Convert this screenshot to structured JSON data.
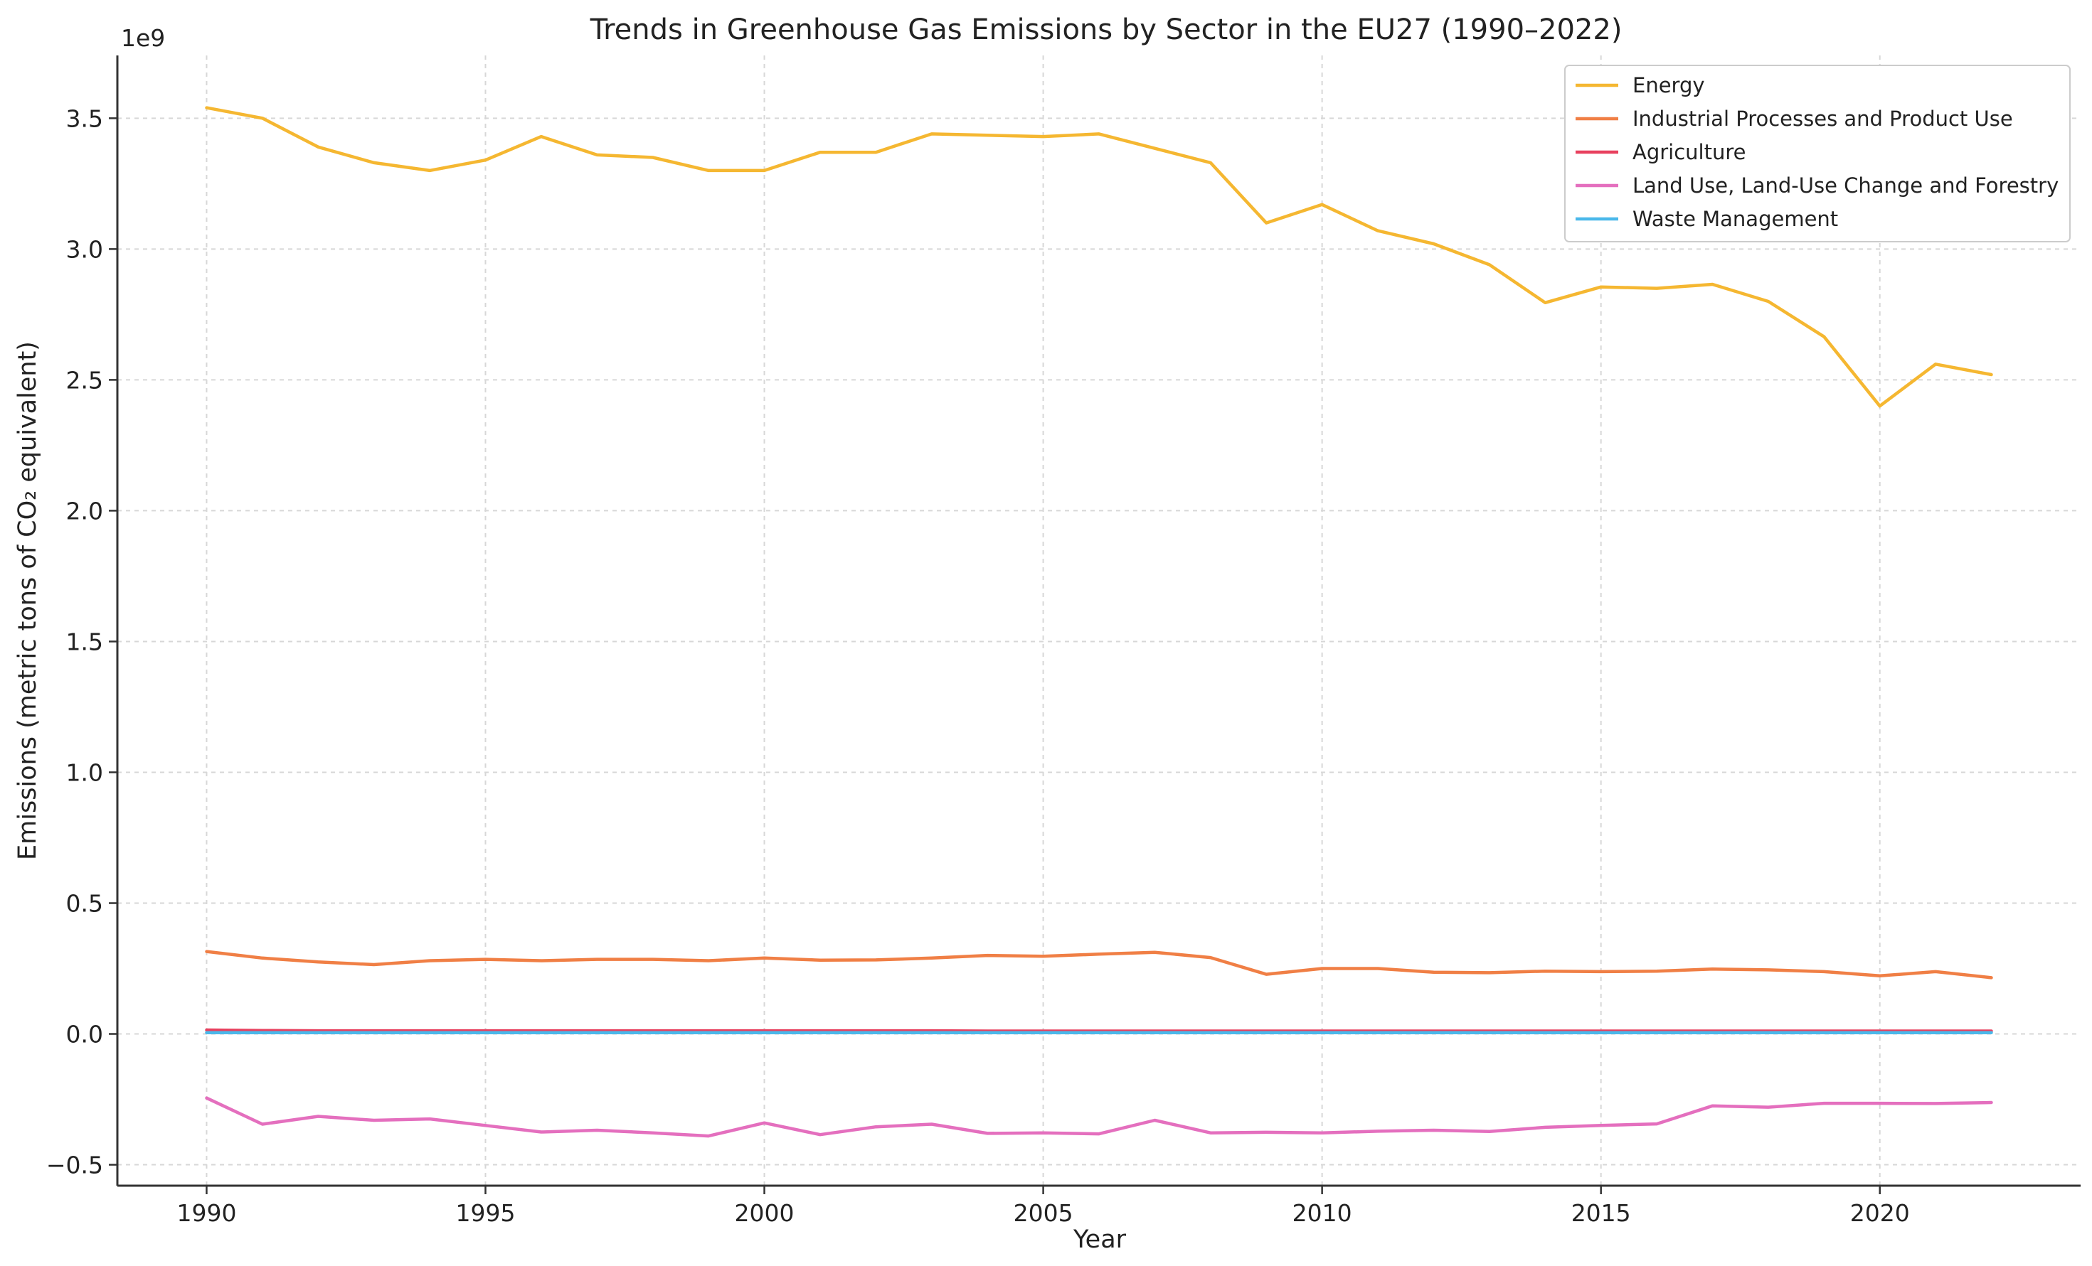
{
  "chart_data": {
    "type": "line",
    "title": "Trends in Greenhouse Gas Emissions by Sector in the EU27 (1990–2022)",
    "xlabel": "Year",
    "ylabel": "Emissions (metric tons of CO₂ equivalent)",
    "y_offset_label": "1e9",
    "xlim": [
      1988.4,
      2023.6
    ],
    "ylim": [
      -0.58,
      3.74
    ],
    "grid": true,
    "legend_position": "top-right",
    "x_ticks": [
      1990,
      1995,
      2000,
      2005,
      2010,
      2015,
      2020
    ],
    "x_tick_labels": [
      "1990",
      "1995",
      "2000",
      "2005",
      "2010",
      "2015",
      "2020"
    ],
    "y_ticks": [
      -0.5,
      0.0,
      0.5,
      1.0,
      1.5,
      2.0,
      2.5,
      3.0,
      3.5
    ],
    "y_tick_labels": [
      "−0.5",
      "0.0",
      "0.5",
      "1.0",
      "1.5",
      "2.0",
      "2.5",
      "3.0",
      "3.5"
    ],
    "x": [
      1990,
      1991,
      1992,
      1993,
      1994,
      1995,
      1996,
      1997,
      1998,
      1999,
      2000,
      2001,
      2002,
      2003,
      2004,
      2005,
      2006,
      2007,
      2008,
      2009,
      2010,
      2011,
      2012,
      2013,
      2014,
      2015,
      2016,
      2017,
      2018,
      2019,
      2020,
      2021,
      2022
    ],
    "series": [
      {
        "name": "Energy",
        "color": "#f5b731",
        "values": [
          3.54,
          3.5,
          3.39,
          3.33,
          3.3,
          3.34,
          3.43,
          3.36,
          3.35,
          3.3,
          3.3,
          3.37,
          3.37,
          3.44,
          3.435,
          3.43,
          3.44,
          3.385,
          3.33,
          3.1,
          3.17,
          3.07,
          3.02,
          2.94,
          2.795,
          2.855,
          2.85,
          2.865,
          2.8,
          2.665,
          2.4,
          2.56,
          2.52
        ]
      },
      {
        "name": "Industrial Processes and Product Use",
        "color": "#f07f45",
        "values": [
          0.315,
          0.29,
          0.275,
          0.265,
          0.28,
          0.285,
          0.28,
          0.285,
          0.285,
          0.28,
          0.29,
          0.282,
          0.283,
          0.29,
          0.3,
          0.297,
          0.305,
          0.312,
          0.292,
          0.228,
          0.25,
          0.25,
          0.236,
          0.234,
          0.24,
          0.238,
          0.24,
          0.248,
          0.245,
          0.238,
          0.222,
          0.238,
          0.215
        ]
      },
      {
        "name": "Agriculture",
        "color": "#e8405e",
        "values": [
          0.015,
          0.013,
          0.012,
          0.012,
          0.012,
          0.012,
          0.012,
          0.012,
          0.012,
          0.012,
          0.012,
          0.012,
          0.012,
          0.012,
          0.011,
          0.011,
          0.011,
          0.011,
          0.011,
          0.011,
          0.011,
          0.011,
          0.011,
          0.011,
          0.011,
          0.011,
          0.011,
          0.011,
          0.011,
          0.011,
          0.011,
          0.011,
          0.011
        ]
      },
      {
        "name": "Land Use, Land-Use Change and Forestry",
        "color": "#e46fbe",
        "values": [
          -0.245,
          -0.345,
          -0.315,
          -0.33,
          -0.325,
          -0.35,
          -0.375,
          -0.368,
          -0.378,
          -0.39,
          -0.34,
          -0.385,
          -0.355,
          -0.345,
          -0.38,
          -0.378,
          -0.382,
          -0.33,
          -0.378,
          -0.376,
          -0.378,
          -0.372,
          -0.368,
          -0.373,
          -0.357,
          -0.35,
          -0.344,
          -0.275,
          -0.28,
          -0.265,
          -0.265,
          -0.266,
          -0.262
        ]
      },
      {
        "name": "Waste Management",
        "color": "#4ab8ea",
        "values": [
          0.005,
          0.005,
          0.005,
          0.005,
          0.005,
          0.005,
          0.005,
          0.005,
          0.005,
          0.005,
          0.005,
          0.005,
          0.005,
          0.005,
          0.005,
          0.005,
          0.005,
          0.005,
          0.005,
          0.005,
          0.005,
          0.005,
          0.005,
          0.005,
          0.005,
          0.005,
          0.005,
          0.005,
          0.005,
          0.005,
          0.005,
          0.005,
          0.005
        ]
      }
    ]
  }
}
